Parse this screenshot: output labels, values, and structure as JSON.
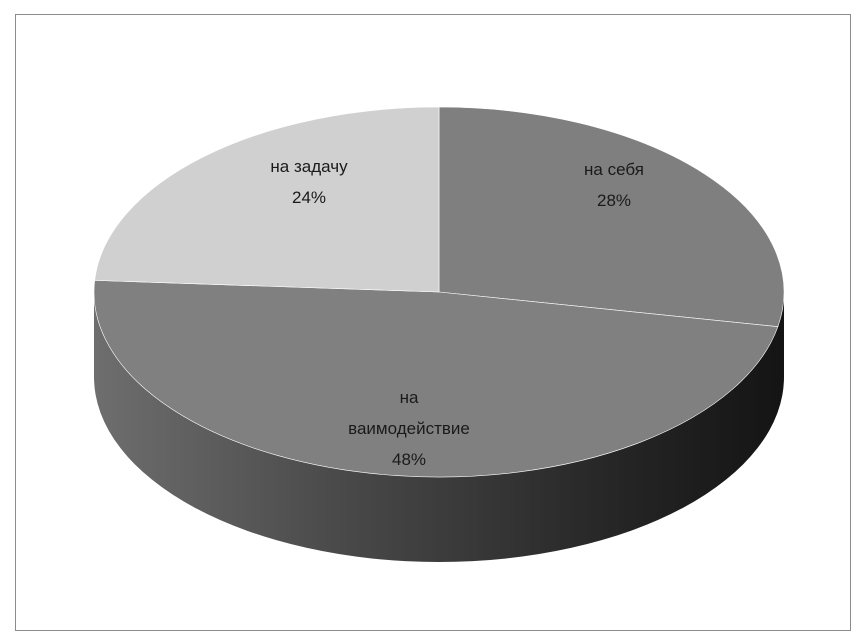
{
  "chart_data": {
    "type": "pie",
    "style": "3d",
    "slices": [
      {
        "label": "на себя",
        "value": 28,
        "value_text": "28%",
        "color": "#7f7f7f"
      },
      {
        "label": "на ваимодействие",
        "label_lines": [
          "на",
          "ваимодействие"
        ],
        "value": 48,
        "value_text": "48%",
        "color": "#808080"
      },
      {
        "label": "на задачу",
        "value": 24,
        "value_text": "24%",
        "color": "#d0d0d0"
      }
    ],
    "side_color": "#3a3a3a",
    "legend": "none",
    "data_labels": "inside"
  }
}
